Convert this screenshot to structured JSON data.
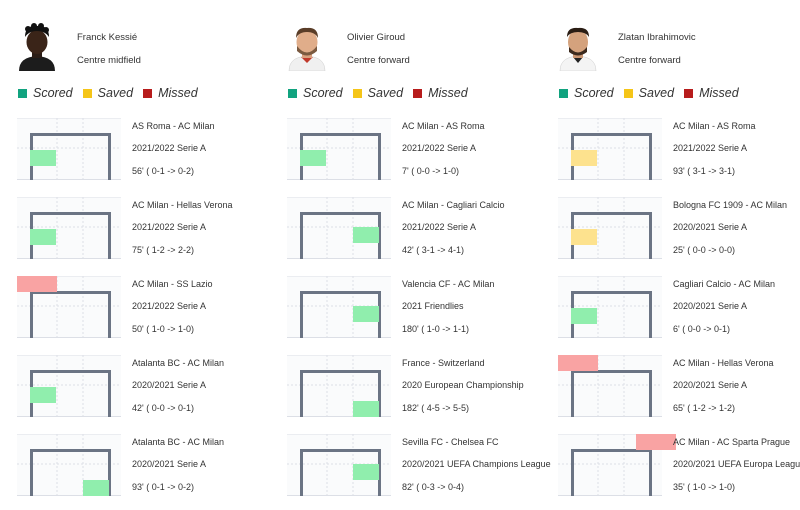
{
  "colors": {
    "scored": "#11a37f",
    "saved": "#f5c518",
    "missed": "#b71c1c",
    "scored_fill": "#90eead",
    "saved_fill": "#fde28e",
    "missed_fill": "#f9a3a3",
    "post": "#6b7484",
    "grid": "#dcdfe6"
  },
  "legend": [
    {
      "key": "scored",
      "label": "Scored"
    },
    {
      "key": "saved",
      "label": "Saved"
    },
    {
      "key": "missed",
      "label": "Missed"
    }
  ],
  "players": [
    {
      "name": "Franck Kessié",
      "position": "Centre midfield",
      "avatar": "player-1-avatar",
      "penalties": [
        {
          "match": "AS Roma - AC Milan",
          "competition": "2021/2022 Serie A",
          "time": "56' ( 0-1 -> 0-2)",
          "outcome": "scored",
          "zone": "bottom-left"
        },
        {
          "match": "AC Milan - Hellas Verona",
          "competition": "2021/2022 Serie A",
          "time": "75' ( 1-2 -> 2-2)",
          "outcome": "scored",
          "zone": "bottom-left"
        },
        {
          "match": "AC Milan - SS Lazio",
          "competition": "2021/2022 Serie A",
          "time": "50' ( 1-0 -> 1-0)",
          "outcome": "missed",
          "zone": "over-left"
        },
        {
          "match": "Atalanta BC - AC Milan",
          "competition": "2020/2021 Serie A",
          "time": "42' ( 0-0 -> 0-1)",
          "outcome": "scored",
          "zone": "bottom-left"
        },
        {
          "match": "Atalanta BC - AC Milan",
          "competition": "2020/2021 Serie A",
          "time": "93' ( 0-1 -> 0-2)",
          "outcome": "scored",
          "zone": "bottom-right"
        }
      ]
    },
    {
      "name": "Olivier Giroud",
      "position": "Centre forward",
      "avatar": "player-2-avatar",
      "penalties": [
        {
          "match": "AC Milan - AS Roma",
          "competition": "2021/2022 Serie A",
          "time": "7' ( 0-0 -> 1-0)",
          "outcome": "scored",
          "zone": "bottom-left"
        },
        {
          "match": "AC Milan - Cagliari Calcio",
          "competition": "2021/2022 Serie A",
          "time": "42' ( 3-1 -> 4-1)",
          "outcome": "scored",
          "zone": "middle-right"
        },
        {
          "match": "Valencia CF - AC Milan",
          "competition": "2021 Friendlies",
          "time": "180' ( 1-0 -> 1-1)",
          "outcome": "scored",
          "zone": "middle-right"
        },
        {
          "match": "France - Switzerland",
          "competition": "2020 European Championship",
          "time": "182' ( 4-5 -> 5-5)",
          "outcome": "scored",
          "zone": "bottom-right"
        },
        {
          "match": "Sevilla FC - Chelsea FC",
          "competition": "2020/2021 UEFA Champions League",
          "time": "82' ( 0-3 -> 0-4)",
          "outcome": "scored",
          "zone": "middle-right"
        }
      ]
    },
    {
      "name": "Zlatan Ibrahimovic",
      "position": "Centre forward",
      "avatar": "player-3-avatar",
      "penalties": [
        {
          "match": "AC Milan - AS Roma",
          "competition": "2021/2022 Serie A",
          "time": "93' ( 3-1 -> 3-1)",
          "outcome": "saved",
          "zone": "bottom-left"
        },
        {
          "match": "Bologna FC 1909 - AC Milan",
          "competition": "2020/2021 Serie A",
          "time": "25' ( 0-0 -> 0-0)",
          "outcome": "saved",
          "zone": "bottom-left"
        },
        {
          "match": "Cagliari Calcio - AC Milan",
          "competition": "2020/2021 Serie A",
          "time": "6' ( 0-0 -> 0-1)",
          "outcome": "scored",
          "zone": "bottom-left"
        },
        {
          "match": "AC Milan - Hellas Verona",
          "competition": "2020/2021 Serie A",
          "time": "65' ( 1-2 -> 1-2)",
          "outcome": "missed",
          "zone": "over-left"
        },
        {
          "match": "AC Milan - AC Sparta Prague",
          "competition": "2020/2021 UEFA Europa League",
          "time": "35' ( 1-0 -> 1-0)",
          "outcome": "missed",
          "zone": "over-right"
        }
      ]
    }
  ]
}
